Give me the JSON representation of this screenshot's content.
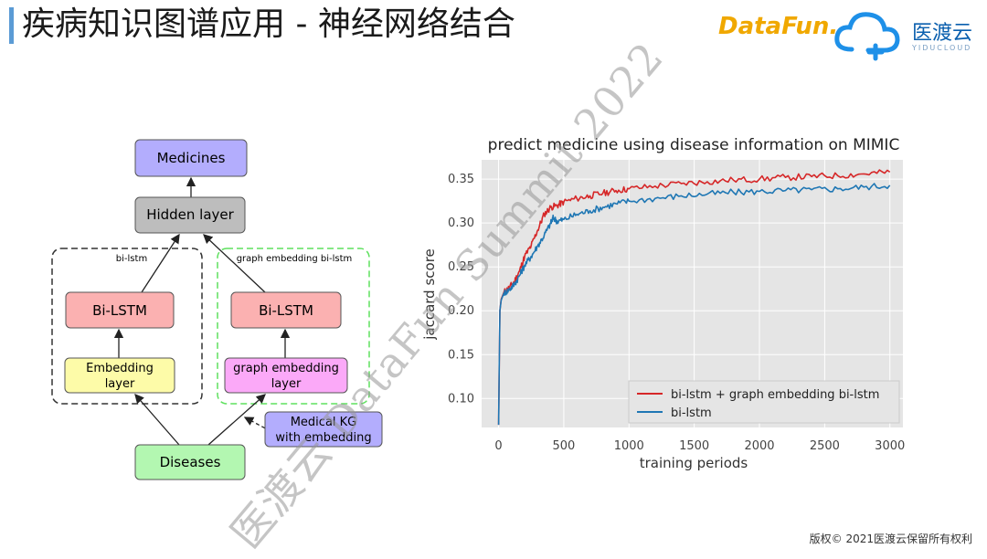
{
  "header": {
    "title": "疾病知识图谱应用 - 神经网络结合",
    "logo_datafun": "DataFun.",
    "logo_yidu": "医渡云",
    "logo_yidu_en": "YIDUCLOUD"
  },
  "diagram": {
    "medicines": "Medicines",
    "hidden": "Hidden layer",
    "group_left": "bi-lstm",
    "group_right": "graph embedding bi-lstm",
    "bilstm_left": "Bi-LSTM",
    "bilstm_right": "Bi-LSTM",
    "embedding_line1": "Embedding",
    "embedding_line2": "layer",
    "graph_emb_line1": "graph embedding",
    "graph_emb_line2": "layer",
    "medical_kg_line1": "Medical KG",
    "medical_kg_line2": "with embedding",
    "diseases": "Diseases"
  },
  "chart_data": {
    "type": "line",
    "title": "predict medicine using disease information on MIMIC",
    "xlabel": "training periods",
    "ylabel": "jaccard score",
    "xlim": [
      -130,
      3100
    ],
    "ylim": [
      0.067,
      0.372
    ],
    "xticks": [
      0,
      500,
      1000,
      1500,
      2000,
      2500,
      3000
    ],
    "yticks": [
      0.1,
      0.15,
      0.2,
      0.25,
      0.3,
      0.35
    ],
    "grid": true,
    "legend_position": "lower-right",
    "series": [
      {
        "name": "bi-lstm + graph embedding bi-lstm",
        "color": "#d62728",
        "x": [
          0,
          5,
          10,
          20,
          40,
          80,
          120,
          160,
          200,
          250,
          300,
          350,
          400,
          450,
          500,
          600,
          700,
          800,
          900,
          1000,
          1200,
          1400,
          1600,
          1800,
          2000,
          2200,
          2400,
          2600,
          2800,
          3000
        ],
        "y": [
          0.07,
          0.14,
          0.2,
          0.213,
          0.221,
          0.226,
          0.233,
          0.245,
          0.262,
          0.274,
          0.292,
          0.31,
          0.318,
          0.32,
          0.324,
          0.328,
          0.331,
          0.334,
          0.337,
          0.339,
          0.342,
          0.345,
          0.347,
          0.349,
          0.35,
          0.352,
          0.353,
          0.354,
          0.356,
          0.358
        ]
      },
      {
        "name": "bi-lstm",
        "color": "#1f77b4",
        "x": [
          0,
          5,
          10,
          20,
          40,
          80,
          120,
          160,
          200,
          250,
          300,
          350,
          400,
          420,
          450,
          500,
          600,
          700,
          800,
          900,
          1000,
          1200,
          1400,
          1600,
          1800,
          2000,
          2200,
          2400,
          2600,
          2800,
          3000
        ],
        "y": [
          0.07,
          0.14,
          0.2,
          0.212,
          0.22,
          0.224,
          0.23,
          0.24,
          0.252,
          0.262,
          0.274,
          0.286,
          0.3,
          0.306,
          0.302,
          0.304,
          0.31,
          0.314,
          0.318,
          0.322,
          0.325,
          0.328,
          0.331,
          0.333,
          0.335,
          0.336,
          0.337,
          0.338,
          0.339,
          0.341,
          0.343
        ]
      }
    ]
  },
  "footer": {
    "copyright": "版权© 2021医渡云保留所有权利",
    "watermark": "医渡云 DataFun Summit 2022"
  }
}
